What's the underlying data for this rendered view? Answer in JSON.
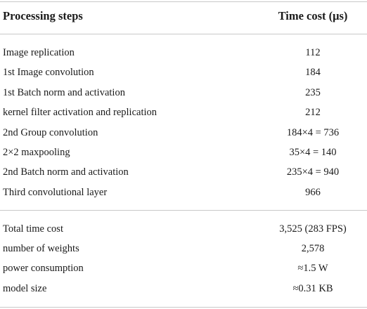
{
  "table": {
    "header": [
      "Processing steps",
      "Time cost (μs)"
    ],
    "body": [
      [
        "Image replication",
        "112"
      ],
      [
        "1st Image convolution",
        "184"
      ],
      [
        "1st Batch norm and activation",
        "235"
      ],
      [
        "kernel filter activation and replication",
        "212"
      ],
      [
        "2nd Group convolution",
        "184×4 = 736"
      ],
      [
        "2×2 maxpooling",
        "35×4 = 140"
      ],
      [
        "2nd Batch norm and activation",
        "235×4 = 940"
      ],
      [
        "Third convolutional layer",
        "966"
      ]
    ],
    "summary": [
      [
        "Total time cost",
        "3,525 (283 FPS)"
      ],
      [
        "number of weights",
        "2,578"
      ],
      [
        "power consumption",
        "≈1.5 W"
      ],
      [
        "model size",
        "≈0.31 KB"
      ]
    ]
  }
}
